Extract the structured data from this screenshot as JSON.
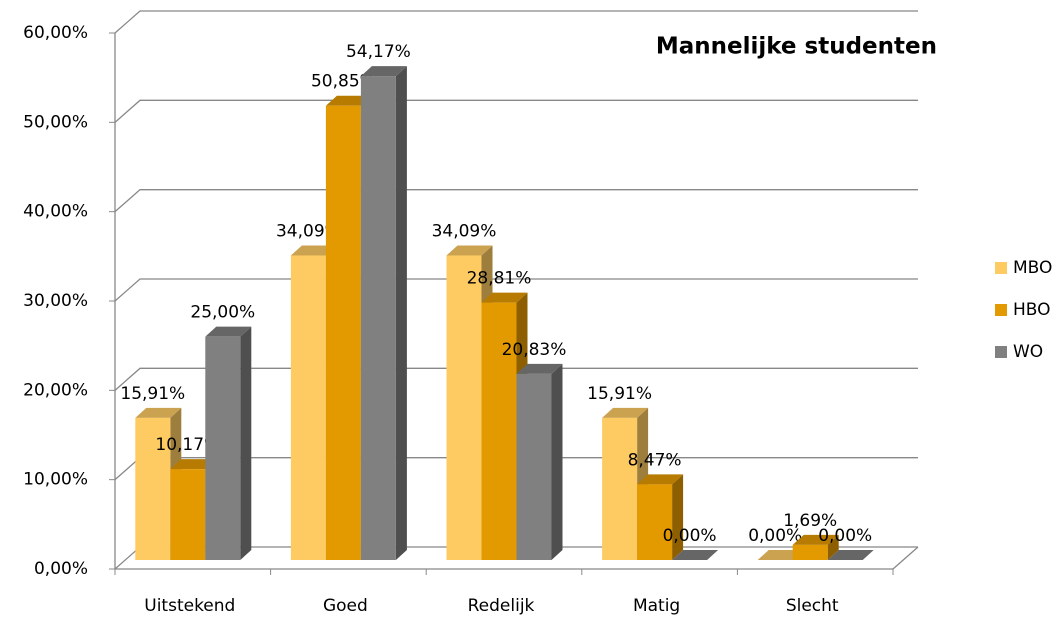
{
  "chart_data": {
    "type": "bar3d",
    "title": "Mannelijke studenten",
    "categories": [
      "Uitstekend",
      "Goed",
      "Redelijk",
      "Matig",
      "Slecht"
    ],
    "series": [
      {
        "name": "MBO",
        "color": "#fecb63",
        "values": [
          15.91,
          34.09,
          34.09,
          15.91,
          0
        ],
        "value_labels": [
          "15,91%",
          "34,09%",
          "34,09%",
          "15,91%",
          "0,00%"
        ]
      },
      {
        "name": "HBO",
        "color": "#e39a00",
        "values": [
          10.17,
          50.85,
          28.81,
          8.47,
          1.69
        ],
        "value_labels": [
          "10,17%",
          "50,85%",
          "28,81%",
          "8,47%",
          "1,69%"
        ]
      },
      {
        "name": "WO",
        "color": "#808080",
        "values": [
          25.0,
          54.17,
          20.83,
          0.0,
          0.0
        ],
        "value_labels": [
          "25,00%",
          "54,17%",
          "20,83%",
          "0,00%",
          "0,00%"
        ]
      }
    ],
    "ylim": [
      0,
      60
    ],
    "yticks": [
      {
        "value": 0,
        "label": "0,00%"
      },
      {
        "value": 10,
        "label": "10,00%"
      },
      {
        "value": 20,
        "label": "20,00%"
      },
      {
        "value": 30,
        "label": "30,00%"
      },
      {
        "value": 40,
        "label": "40,00%"
      },
      {
        "value": 50,
        "label": "50,00%"
      },
      {
        "value": 60,
        "label": "60,00%"
      }
    ],
    "grid": true,
    "legend": "right"
  }
}
